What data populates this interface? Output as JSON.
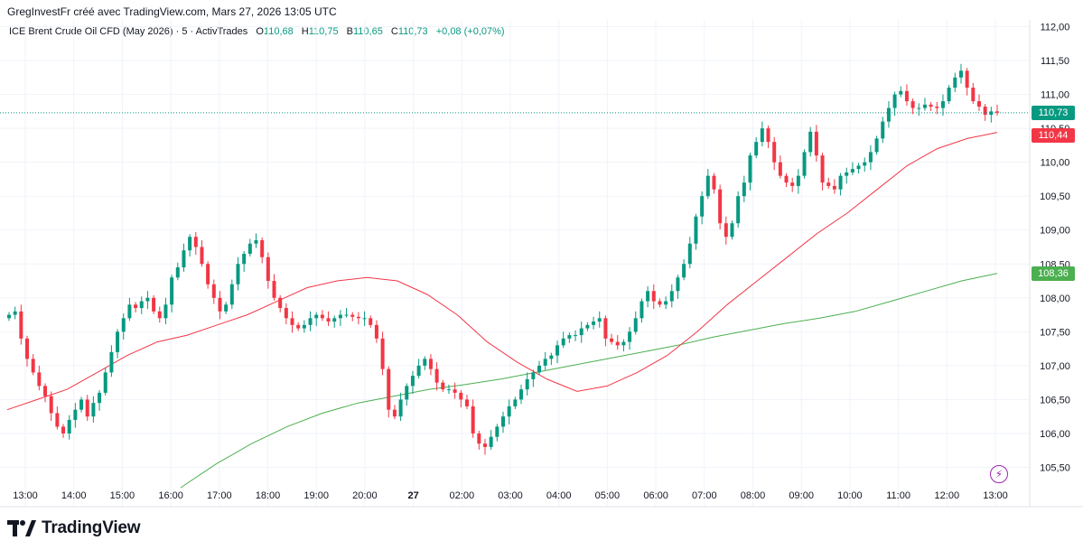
{
  "attribution": "GregInvestFr créé avec TradingView.com, Mars 27, 2026 13:05 UTC",
  "legend": {
    "symbol": "ICE Brent Crude Oil CFD (May 2026) · 5 · ActivTrades",
    "open_label": "O",
    "open": "110,68",
    "high_label": "H",
    "high": "110,75",
    "low_label": "B",
    "low": "110,65",
    "close_label": "C",
    "close": "110,73",
    "change": "+0,08 (+0,07%)"
  },
  "price_tags": {
    "last_price": "110,73",
    "ma_fast": "110,44",
    "ma_slow": "108,36"
  },
  "logo_text": "TradingView",
  "colors": {
    "up": "#089981",
    "down": "#f23645",
    "ma_fast": "#f23645",
    "ma_slow": "#4caf50",
    "last_tag": "#089981",
    "slow_tag": "#4caf50",
    "fast_tag": "#f23645"
  },
  "chart_data": {
    "type": "candlestick",
    "title": "ICE Brent Crude Oil CFD (May 2026) · 5 · ActivTrades",
    "interval": "5",
    "ylim": [
      105.2,
      112.1
    ],
    "y_ticks": [
      {
        "value": 112.0,
        "label": "112,00"
      },
      {
        "value": 111.5,
        "label": "111,50"
      },
      {
        "value": 111.0,
        "label": "111,00"
      },
      {
        "value": 110.5,
        "label": "110,50"
      },
      {
        "value": 110.0,
        "label": "110,00"
      },
      {
        "value": 109.5,
        "label": "109,50"
      },
      {
        "value": 109.0,
        "label": "109,00"
      },
      {
        "value": 108.5,
        "label": "108,50"
      },
      {
        "value": 108.0,
        "label": "108,00"
      },
      {
        "value": 107.5,
        "label": "107,50"
      },
      {
        "value": 107.0,
        "label": "107,00"
      },
      {
        "value": 106.5,
        "label": "106,50"
      },
      {
        "value": 106.0,
        "label": "106,00"
      },
      {
        "value": 105.5,
        "label": "105,50"
      }
    ],
    "x_ticks": [
      "13:00",
      "14:00",
      "15:00",
      "16:00",
      "17:00",
      "18:00",
      "19:00",
      "20:00",
      "27",
      "02:00",
      "03:00",
      "04:00",
      "05:00",
      "06:00",
      "07:00",
      "08:00",
      "09:00",
      "10:00",
      "11:00",
      "12:00",
      "13:00"
    ],
    "last_price": 110.73,
    "series": [
      {
        "name": "Close (5m)",
        "values": [
          107.75,
          107.8,
          107.4,
          107.1,
          106.9,
          106.7,
          106.55,
          106.3,
          106.1,
          106.0,
          106.2,
          106.35,
          106.5,
          106.25,
          106.45,
          106.6,
          106.9,
          107.2,
          107.5,
          107.7,
          107.9,
          107.85,
          107.95,
          108.0,
          107.8,
          107.7,
          107.9,
          108.3,
          108.45,
          108.7,
          108.9,
          108.75,
          108.5,
          108.2,
          108.0,
          107.8,
          107.9,
          108.2,
          108.5,
          108.65,
          108.8,
          108.85,
          108.6,
          108.25,
          108.0,
          107.85,
          107.7,
          107.6,
          107.55,
          107.6,
          107.7,
          107.75,
          107.7,
          107.65,
          107.7,
          107.75,
          107.75,
          107.72,
          107.7,
          107.7,
          107.6,
          107.4,
          106.95,
          106.35,
          106.25,
          106.5,
          106.7,
          106.85,
          107.0,
          107.1,
          106.95,
          106.75,
          106.65,
          106.65,
          106.6,
          106.5,
          106.4,
          106.0,
          105.85,
          105.8,
          105.95,
          106.1,
          106.25,
          106.4,
          106.5,
          106.65,
          106.8,
          106.9,
          107.0,
          107.1,
          107.15,
          107.3,
          107.4,
          107.45,
          107.45,
          107.55,
          107.6,
          107.65,
          107.7,
          107.4,
          107.35,
          107.3,
          107.35,
          107.5,
          107.7,
          107.95,
          108.1,
          107.95,
          107.9,
          107.95,
          108.1,
          108.3,
          108.5,
          108.8,
          109.2,
          109.5,
          109.8,
          109.6,
          109.1,
          108.9,
          109.1,
          109.5,
          109.7,
          110.1,
          110.3,
          110.5,
          110.3,
          110.0,
          109.8,
          109.7,
          109.65,
          109.8,
          110.15,
          110.45,
          110.1,
          109.7,
          109.65,
          109.6,
          109.8,
          109.85,
          109.9,
          109.95,
          110.0,
          110.15,
          110.35,
          110.6,
          110.8,
          111.0,
          111.05,
          110.9,
          110.8,
          110.8,
          110.85,
          110.82,
          110.8,
          110.9,
          111.1,
          111.25,
          111.35,
          111.1,
          110.9,
          110.82,
          110.7,
          110.75,
          110.73
        ]
      },
      {
        "name": "MA fast (red)",
        "values": [
          106.35,
          106.5,
          106.65,
          106.9,
          107.15,
          107.35,
          107.45,
          107.6,
          107.75,
          107.95,
          108.15,
          108.25,
          108.3,
          108.25,
          108.05,
          107.75,
          107.35,
          107.05,
          106.8,
          106.62,
          106.7,
          106.9,
          107.15,
          107.5,
          107.9,
          108.25,
          108.6,
          108.95,
          109.25,
          109.6,
          109.95,
          110.2,
          110.35,
          110.44
        ]
      },
      {
        "name": "MA slow (green)",
        "values": [
          105.2,
          105.55,
          105.85,
          106.1,
          106.3,
          106.45,
          106.55,
          106.65,
          106.72,
          106.8,
          106.9,
          107.0,
          107.1,
          107.2,
          107.3,
          107.42,
          107.52,
          107.62,
          107.7,
          107.8,
          107.95,
          108.1,
          108.25,
          108.36
        ]
      }
    ],
    "grid": true,
    "legend": "top-left",
    "xlabel": "",
    "ylabel": ""
  }
}
